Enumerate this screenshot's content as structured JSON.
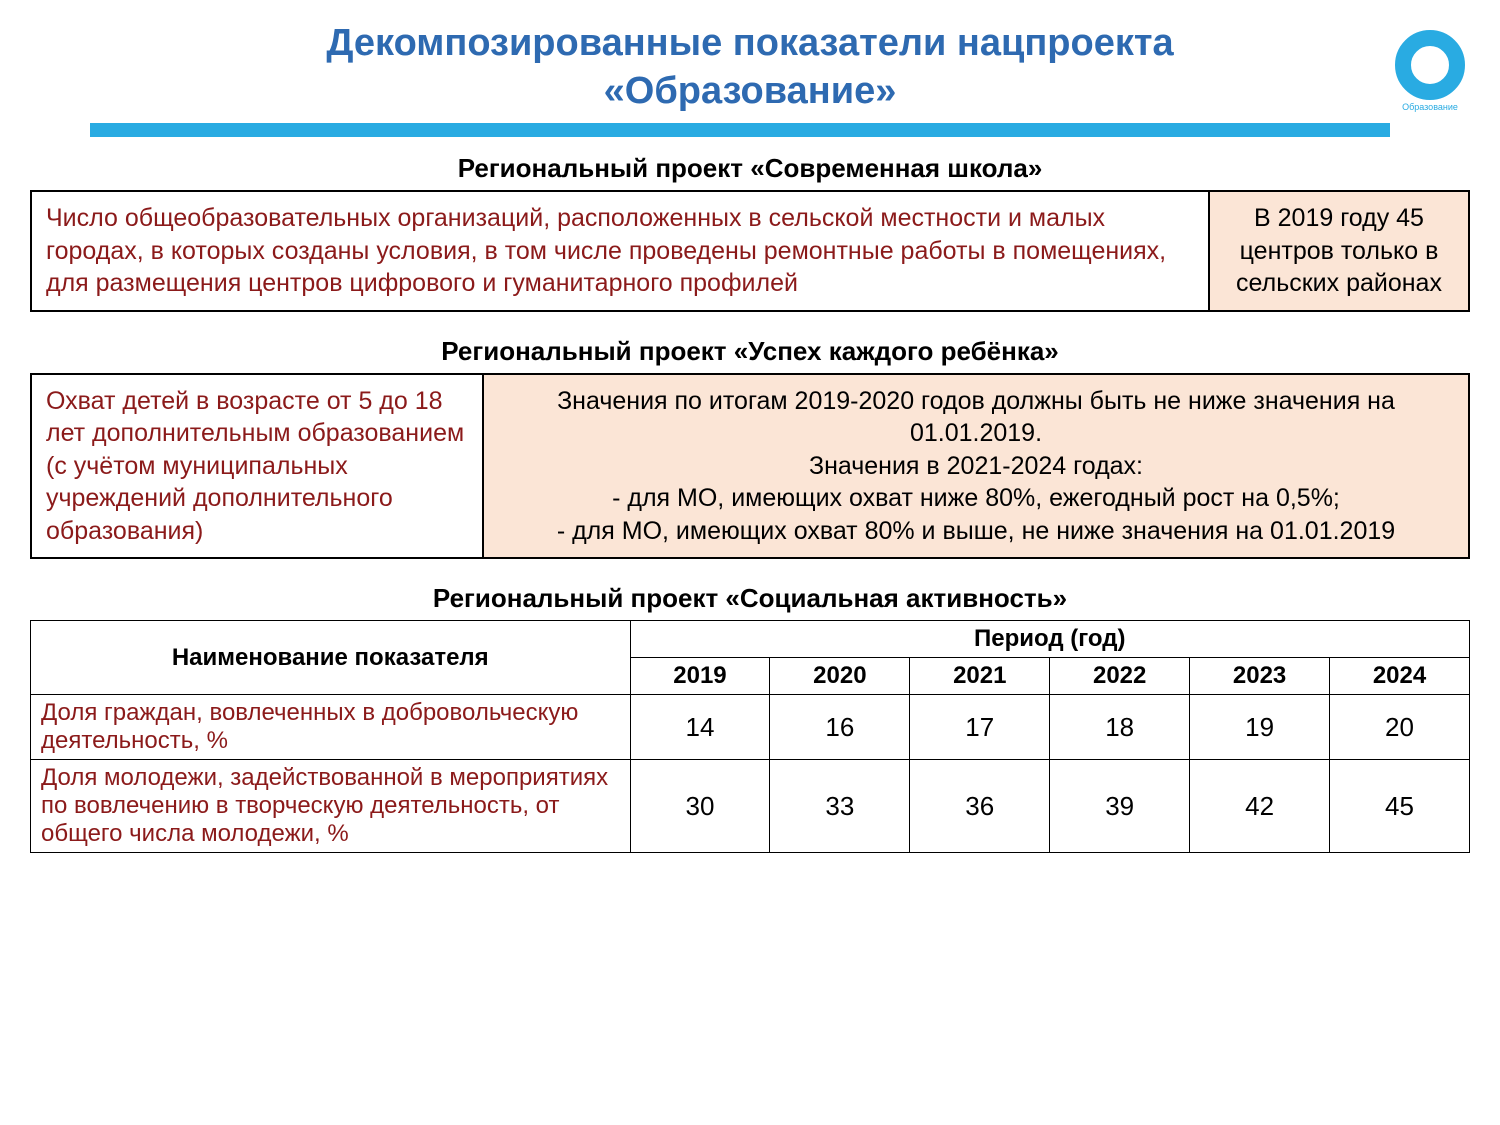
{
  "title_line1": "Декомпозированные показатели нацпроекта",
  "title_line2": "«Образование»",
  "title_color": "#2e6ab1",
  "logo_label": "Образование",
  "logo_color": "#29abe2",
  "bar_color": "#29abe2",
  "highlight_bg": "#fbe5d6",
  "indicator_text_color": "#8b1a1a",
  "section1": {
    "heading": "Региональный проект «Современная школа»",
    "left": "Число общеобразовательных организаций, расположенных в сельской местности и малых городах, в которых созданы условия, в том числе проведены ремонтные работы в помещениях, для размещения центров цифрового и гуманитарного профилей",
    "right": "В 2019 году 45 центров только в сельских районах"
  },
  "section2": {
    "heading": "Региональный проект «Успех каждого ребёнка»",
    "left": "Охват детей в возрасте от 5 до 18 лет дополнительным образованием (с учётом муниципальных учреждений дополнительного образования)",
    "right_l1": "Значения по итогам 2019-2020 годов должны быть не ниже значения на 01.01.2019.",
    "right_l2": "Значения в 2021-2024 годах:",
    "right_l3": "- для МО, имеющих охват ниже 80%, ежегодный рост на 0,5%;",
    "right_l4": "- для МО, имеющих охват 80% и выше, не ниже значения на 01.01.2019"
  },
  "section3": {
    "heading": "Региональный проект «Социальная активность»",
    "col_name": "Наименование показателя",
    "col_period": "Период (год)",
    "years": [
      "2019",
      "2020",
      "2021",
      "2022",
      "2023",
      "2024"
    ],
    "rows": [
      {
        "name": "Доля граждан, вовлеченных в добровольческую деятельность, %",
        "vals": [
          "14",
          "16",
          "17",
          "18",
          "19",
          "20"
        ]
      },
      {
        "name": "Доля молодежи, задействованной в мероприятиях по вовлечению в творческую деятельность, от общего числа молодежи, %",
        "vals": [
          "30",
          "33",
          "36",
          "39",
          "42",
          "45"
        ]
      }
    ]
  }
}
